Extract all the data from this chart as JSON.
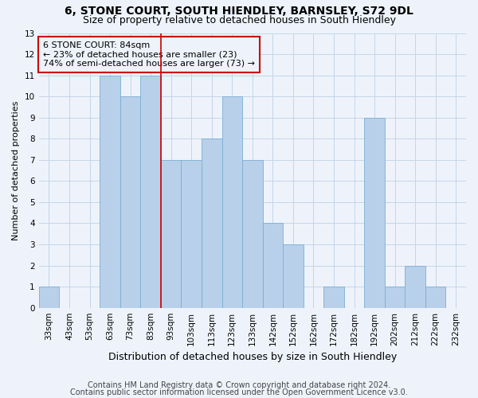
{
  "title": "6, STONE COURT, SOUTH HIENDLEY, BARNSLEY, S72 9DL",
  "subtitle": "Size of property relative to detached houses in South Hiendley",
  "xlabel": "Distribution of detached houses by size in South Hiendley",
  "ylabel": "Number of detached properties",
  "categories": [
    "33sqm",
    "43sqm",
    "53sqm",
    "63sqm",
    "73sqm",
    "83sqm",
    "93sqm",
    "103sqm",
    "113sqm",
    "123sqm",
    "133sqm",
    "142sqm",
    "152sqm",
    "162sqm",
    "172sqm",
    "182sqm",
    "192sqm",
    "202sqm",
    "212sqm",
    "222sqm",
    "232sqm"
  ],
  "values": [
    1,
    0,
    0,
    11,
    10,
    11,
    7,
    7,
    8,
    10,
    7,
    4,
    3,
    0,
    1,
    0,
    9,
    1,
    2,
    1,
    0
  ],
  "bar_color": "#b8d0ea",
  "bar_edge_color": "#7bafd4",
  "reference_line_index": 5,
  "reference_line_color": "#cc0000",
  "annotation_line1": "6 STONE COURT: 84sqm",
  "annotation_line2": "← 23% of detached houses are smaller (23)",
  "annotation_line3": "74% of semi-detached houses are larger (73) →",
  "annotation_box_edge_color": "#cc0000",
  "ylim": [
    0,
    13
  ],
  "yticks": [
    0,
    1,
    2,
    3,
    4,
    5,
    6,
    7,
    8,
    9,
    10,
    11,
    12,
    13
  ],
  "footnote1": "Contains HM Land Registry data © Crown copyright and database right 2024.",
  "footnote2": "Contains public sector information licensed under the Open Government Licence v3.0.",
  "background_color": "#eef3fb",
  "grid_color": "#c5d5e8",
  "title_fontsize": 10,
  "subtitle_fontsize": 9,
  "xlabel_fontsize": 9,
  "ylabel_fontsize": 8,
  "tick_fontsize": 7.5,
  "annotation_fontsize": 8,
  "footnote_fontsize": 7
}
